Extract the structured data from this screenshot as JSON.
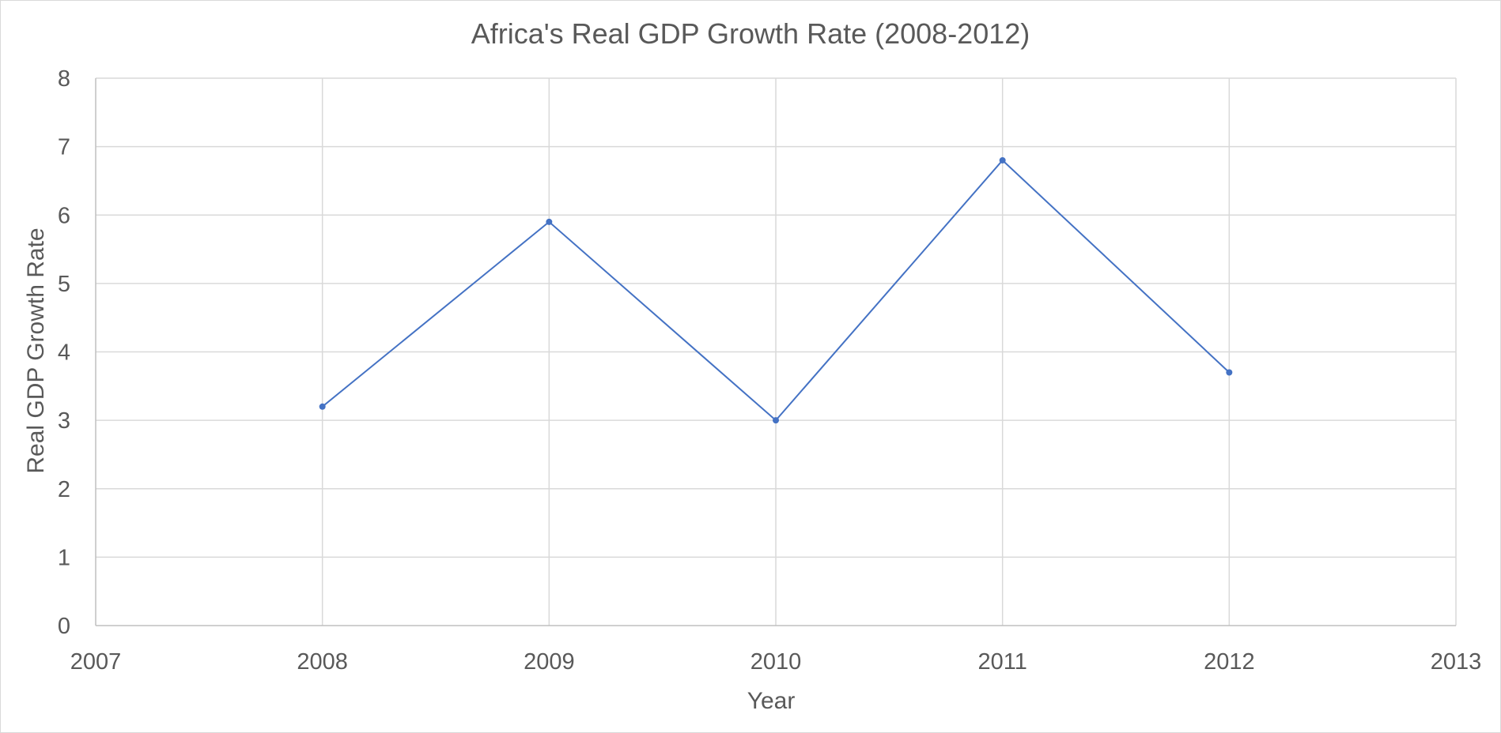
{
  "chart_data": {
    "type": "scatter",
    "title": "Africa's Real GDP Growth Rate (2008-2012)",
    "xlabel": "Year",
    "ylabel": "Real GDP Growth Rate",
    "xlim": [
      2007,
      2013
    ],
    "ylim": [
      0,
      8
    ],
    "x_ticks": [
      2007,
      2008,
      2009,
      2010,
      2011,
      2012,
      2013
    ],
    "y_ticks": [
      0,
      1,
      2,
      3,
      4,
      5,
      6,
      7,
      8
    ],
    "grid": true,
    "legend": "none",
    "series": [
      {
        "x": [
          2008,
          2009,
          2010,
          2011,
          2012
        ],
        "y": [
          3.2,
          5.9,
          3.0,
          6.8,
          3.7
        ],
        "style": "line-with-markers"
      }
    ],
    "colors": {
      "series": "#4472c4",
      "grid": "#d9d9d9",
      "text": "#595959"
    }
  }
}
